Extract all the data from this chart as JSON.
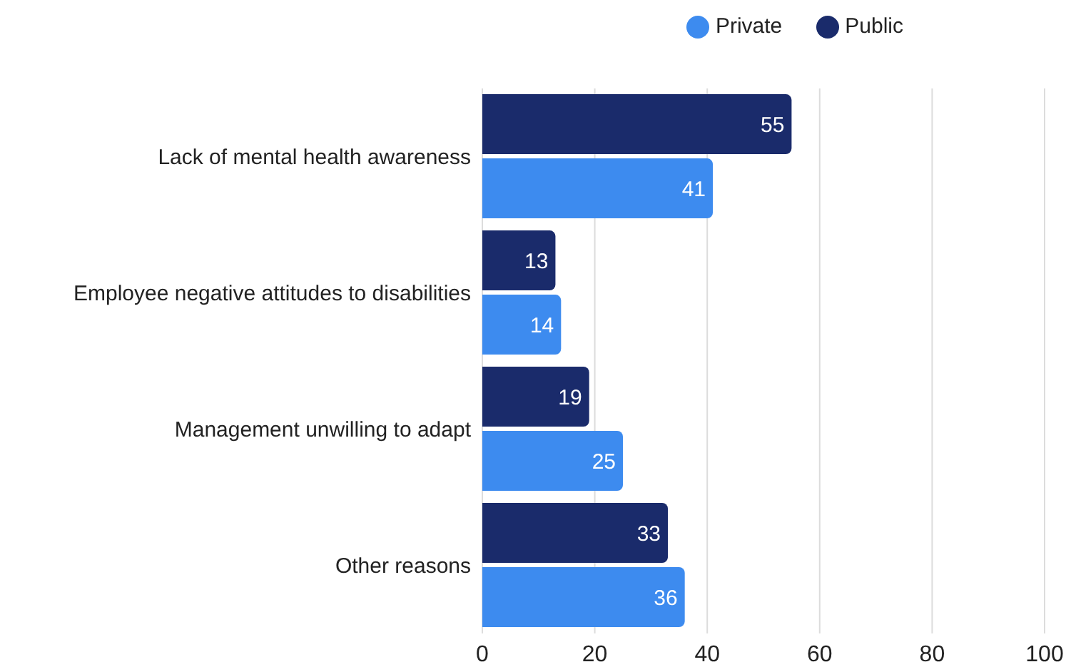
{
  "chart_data": {
    "type": "bar",
    "orientation": "horizontal",
    "categories": [
      "Lack of mental health awareness",
      "Employee negative attitudes to disabilities",
      "Management unwilling to adapt",
      "Other reasons"
    ],
    "series": [
      {
        "name": "Public",
        "color": "#1a2b6b",
        "values": [
          55,
          13,
          19,
          33
        ]
      },
      {
        "name": "Private",
        "color": "#3d8bef",
        "values": [
          41,
          14,
          25,
          36
        ]
      }
    ],
    "xlim": [
      0,
      100
    ],
    "xticks": [
      0,
      20,
      40,
      60,
      80,
      100
    ],
    "grid": "x",
    "legend": "top right",
    "data_labels": true
  }
}
